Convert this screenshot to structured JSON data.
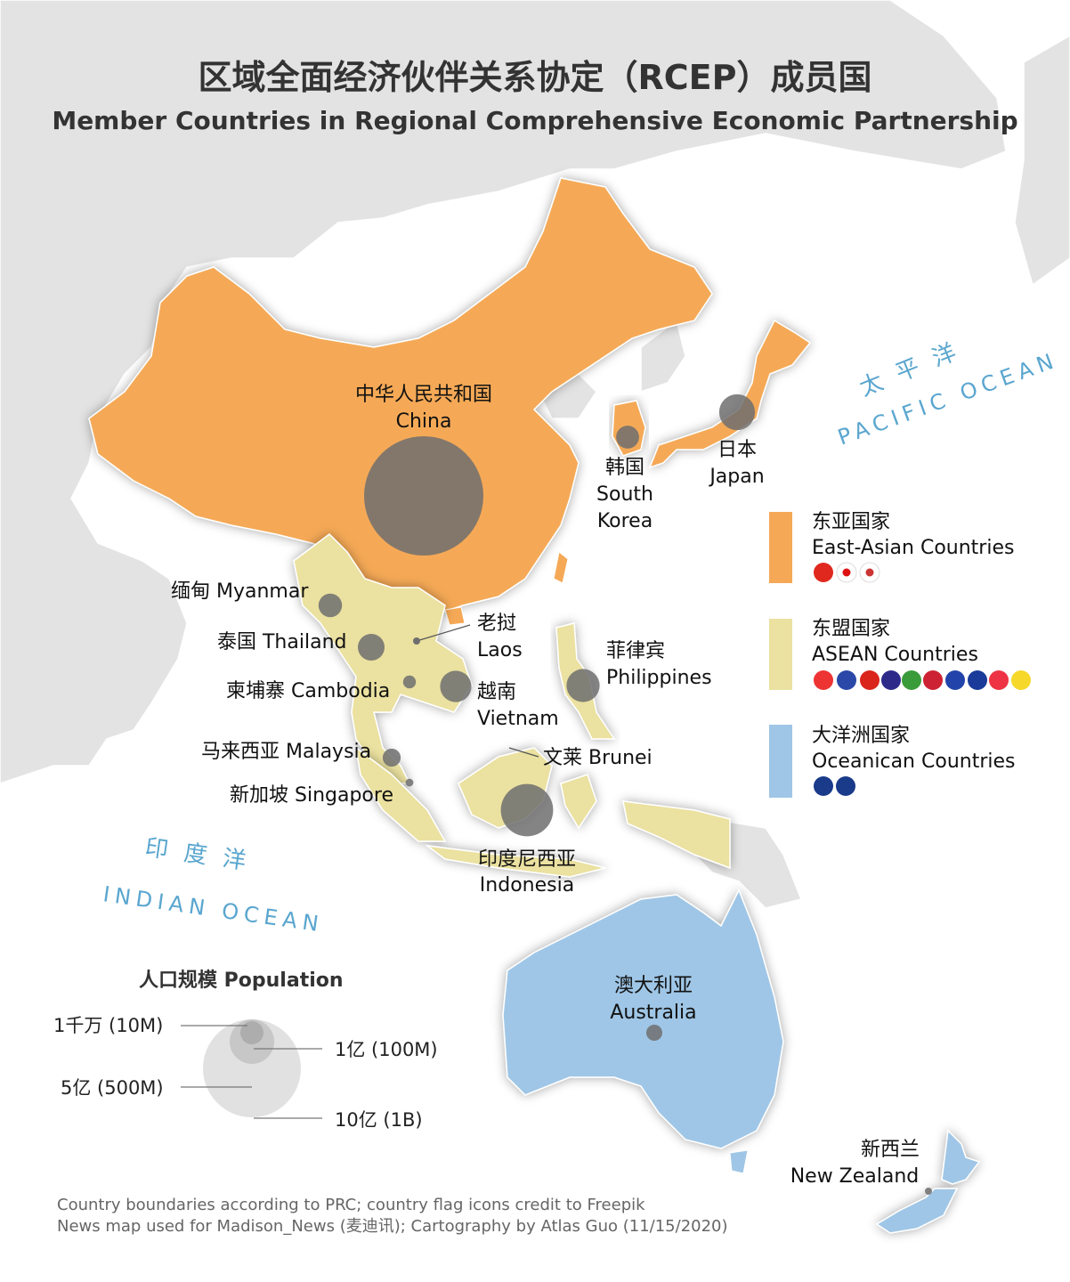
{
  "title": {
    "zh": "区域全面经济伙伴关系协定（RCEP）成员国",
    "en": "Member Countries in Regional Comprehensive Economic Partnership"
  },
  "oceans": {
    "pacific_zh": "太平洋",
    "pacific_en": "PACIFIC OCEAN",
    "indian_zh": "印度洋",
    "indian_en": "INDIAN OCEAN"
  },
  "countries": {
    "china": {
      "zh": "中华人民共和国",
      "en": "China",
      "population_millions": 1400
    },
    "japan": {
      "zh": "日本",
      "en": "Japan",
      "population_millions": 126
    },
    "south_korea": {
      "zh": "韩国",
      "en1": "South",
      "en2": "Korea",
      "population_millions": 52
    },
    "myanmar": {
      "label": "缅甸 Myanmar",
      "population_millions": 54
    },
    "thailand": {
      "label": "泰国 Thailand",
      "population_millions": 70
    },
    "laos": {
      "zh": "老挝",
      "en": "Laos",
      "population_millions": 7
    },
    "cambodia": {
      "label": "柬埔寨 Cambodia",
      "population_millions": 16
    },
    "vietnam": {
      "zh": "越南",
      "en": "Vietnam",
      "population_millions": 97
    },
    "philippines": {
      "zh": "菲律宾",
      "en": "Philippines",
      "population_millions": 108
    },
    "malaysia": {
      "label": "马来西亚 Malaysia",
      "population_millions": 32
    },
    "singapore": {
      "label": "新加坡 Singapore",
      "population_millions": 6
    },
    "brunei": {
      "label": "文莱 Brunei",
      "population_millions": 0.4
    },
    "indonesia": {
      "zh": "印度尼西亚",
      "en": "Indonesia",
      "population_millions": 270
    },
    "australia": {
      "zh": "澳大利亚",
      "en": "Australia",
      "population_millions": 25
    },
    "new_zealand": {
      "zh": "新西兰",
      "en": "New Zealand",
      "population_millions": 5
    }
  },
  "legend": {
    "east_asia": {
      "zh": "东亚国家",
      "en": "East-Asian Countries",
      "color": "#f5a957"
    },
    "asean": {
      "zh": "东盟国家",
      "en": "ASEAN Countries",
      "color": "#ebe1a0"
    },
    "oceania": {
      "zh": "大洋洲国家",
      "en": "Oceanican Countries",
      "color": "#9fc6e6"
    }
  },
  "population_legend": {
    "title": "人口规模 Population",
    "l10m": "1千万 (10M)",
    "l100m": "1亿 (100M)",
    "l500m": "5亿 (500M)",
    "l1b": "10亿 (1B)"
  },
  "credits": {
    "line1": "Country boundaries according to PRC; country flag icons credit to Freepik",
    "line2": "News map used for Madison_News (麦迪讯); Cartography by Atlas Guo (11/15/2020)"
  },
  "colors": {
    "background_land": "#e3e3e3",
    "sea": "#ffffff",
    "east_asia": "#f5a957",
    "asean": "#ebe1a0",
    "oceania": "#9fc6e6",
    "bubble": "#6e6e6e"
  }
}
